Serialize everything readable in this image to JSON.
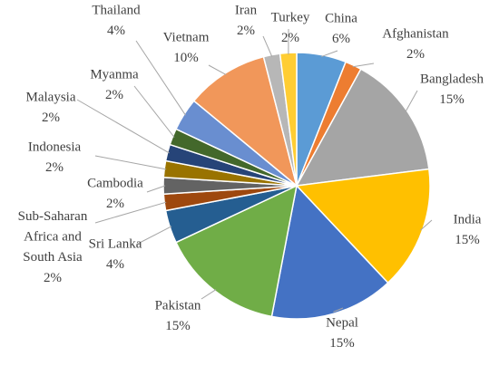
{
  "chart_data": {
    "type": "pie",
    "categories": [
      "China",
      "Afghanistan",
      "Bangladesh",
      "India",
      "Nepal",
      "Pakistan",
      "Sri Lanka",
      "Sub-Saharan Africa and South Asia",
      "Cambodia",
      "Indonesia",
      "Malaysia",
      "Myanma",
      "Thailand",
      "Vietnam",
      "Iran",
      "Turkey"
    ],
    "values": [
      6,
      2,
      15,
      15,
      15,
      15,
      4,
      2,
      2,
      2,
      2,
      2,
      4,
      10,
      2,
      2
    ],
    "value_labels": [
      "6%",
      "2%",
      "15%",
      "15%",
      "15%",
      "15%",
      "4%",
      "2%",
      "2%",
      "2%",
      "2%",
      "2%",
      "4%",
      "10%",
      "2%",
      "2%"
    ],
    "colors": [
      "#5b9bd5",
      "#ed7d31",
      "#a5a5a5",
      "#ffc000",
      "#4472c4",
      "#70ad47",
      "#255e91",
      "#9e480e",
      "#636363",
      "#997300",
      "#264478",
      "#43682b",
      "#698ed0",
      "#f1975a",
      "#b7b7b7",
      "#ffcd33"
    ]
  }
}
